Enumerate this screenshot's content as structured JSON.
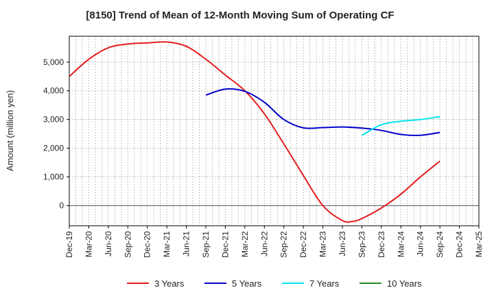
{
  "chart_data": {
    "type": "line",
    "title": "[8150]  Trend of Mean of 12-Month Moving Sum of Operating CF",
    "ylabel": "Amount (million yen)",
    "xlabel": "",
    "ylim": [
      -700,
      5900
    ],
    "yticks": [
      0,
      1000,
      2000,
      3000,
      4000,
      5000
    ],
    "ytick_labels": [
      "0",
      "1,000",
      "2,000",
      "3,000",
      "4,000",
      "5,000"
    ],
    "x_categories": [
      "Dec-19",
      "Mar-20",
      "Jun-20",
      "Sep-20",
      "Dec-20",
      "Mar-21",
      "Jun-21",
      "Sep-21",
      "Dec-21",
      "Mar-22",
      "Jun-22",
      "Sep-22",
      "Dec-22",
      "Mar-23",
      "Jun-23",
      "Sep-23",
      "Dec-23",
      "Mar-24",
      "Jun-24",
      "Sep-24",
      "Dec-24",
      "Mar-25"
    ],
    "grid": true,
    "legend_position": "bottom",
    "series": [
      {
        "name": "3 Years",
        "color": "#e31a1c",
        "x": [
          0,
          1,
          2,
          3,
          4,
          5,
          6,
          7,
          8,
          9,
          10,
          11,
          12,
          13,
          14,
          14.5,
          15,
          16,
          17,
          18,
          19
        ],
        "values": [
          4500,
          5100,
          5500,
          5630,
          5670,
          5700,
          5550,
          5100,
          4550,
          4000,
          3200,
          2150,
          1050,
          0,
          -520,
          -550,
          -450,
          -80,
          400,
          1000,
          1550
        ]
      },
      {
        "name": "5 Years",
        "color": "#0000cc",
        "x": [
          7,
          8,
          9,
          10,
          11,
          12,
          13,
          14,
          15,
          16,
          17,
          18,
          19
        ],
        "values": [
          3850,
          4060,
          3980,
          3600,
          3000,
          2710,
          2720,
          2740,
          2700,
          2620,
          2480,
          2450,
          2550
        ]
      },
      {
        "name": "7 Years",
        "color": "#00e5ee",
        "x": [
          15,
          16,
          17,
          18,
          19
        ],
        "values": [
          2450,
          2820,
          2940,
          3000,
          3100
        ]
      },
      {
        "name": "10 Years",
        "color": "#228b22",
        "x": [],
        "values": []
      }
    ]
  }
}
